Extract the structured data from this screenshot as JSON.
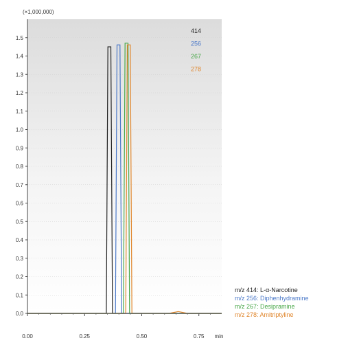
{
  "chart_data": {
    "type": "line",
    "title": "",
    "xlabel": "",
    "ylabel": "",
    "y_multiplier_label": "(×1,000,000)",
    "x_unit": "min",
    "xlim": [
      0,
      0.85
    ],
    "ylim": [
      0,
      1.6
    ],
    "x_ticks": [
      "0.00",
      "0.25",
      "0.50",
      "0.75"
    ],
    "y_ticks": [
      "0.0",
      "0.1",
      "0.2",
      "0.3",
      "0.4",
      "0.5",
      "0.6",
      "0.7",
      "0.8",
      "0.9",
      "1.0",
      "1.1",
      "1.2",
      "1.3",
      "1.4",
      "1.5"
    ],
    "series": [
      {
        "name": "414",
        "color": "#222222",
        "x": [
          0,
          0.345,
          0.352,
          0.365,
          0.372,
          0.85
        ],
        "y": [
          0,
          0,
          1.45,
          1.45,
          0,
          0
        ]
      },
      {
        "name": "256",
        "color": "#4a78c8",
        "x": [
          0,
          0.385,
          0.392,
          0.405,
          0.412,
          0.85
        ],
        "y": [
          0,
          0,
          1.46,
          1.46,
          0,
          0
        ]
      },
      {
        "name": "267",
        "color": "#4aa84a",
        "x": [
          0,
          0.42,
          0.427,
          0.44,
          0.447,
          0.85
        ],
        "y": [
          0,
          0,
          1.47,
          1.47,
          0,
          0
        ]
      },
      {
        "name": "278",
        "color": "#e0862c",
        "x": [
          0,
          0.43,
          0.437,
          0.45,
          0.457,
          0.62,
          0.66,
          0.7,
          0.85
        ],
        "y": [
          0,
          0,
          1.46,
          1.46,
          0,
          0,
          0.01,
          0,
          0
        ]
      }
    ],
    "legend": [
      {
        "text": "m/z 414: L-α-Narcotine",
        "color": "#222222"
      },
      {
        "text": "m/z 256: Diphenhydramine",
        "color": "#4a78c8"
      },
      {
        "text": "m/z 267: Desipramine",
        "color": "#4aa84a"
      },
      {
        "text": "m/z 278: Amitriptyline",
        "color": "#e0862c"
      }
    ]
  }
}
